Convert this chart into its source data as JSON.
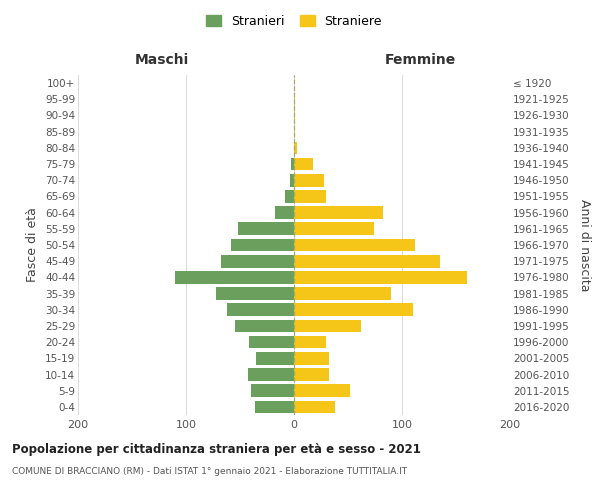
{
  "age_groups": [
    "0-4",
    "5-9",
    "10-14",
    "15-19",
    "20-24",
    "25-29",
    "30-34",
    "35-39",
    "40-44",
    "45-49",
    "50-54",
    "55-59",
    "60-64",
    "65-69",
    "70-74",
    "75-79",
    "80-84",
    "85-89",
    "90-94",
    "95-99",
    "100+"
  ],
  "birth_years": [
    "2016-2020",
    "2011-2015",
    "2006-2010",
    "2001-2005",
    "1996-2000",
    "1991-1995",
    "1986-1990",
    "1981-1985",
    "1976-1980",
    "1971-1975",
    "1966-1970",
    "1961-1965",
    "1956-1960",
    "1951-1955",
    "1946-1950",
    "1941-1945",
    "1936-1940",
    "1931-1935",
    "1926-1930",
    "1921-1925",
    "≤ 1920"
  ],
  "males": [
    36,
    40,
    43,
    35,
    42,
    55,
    62,
    72,
    110,
    68,
    58,
    52,
    18,
    8,
    4,
    3,
    0,
    0,
    0,
    0,
    0
  ],
  "females": [
    38,
    52,
    32,
    32,
    30,
    62,
    110,
    90,
    160,
    135,
    112,
    74,
    82,
    30,
    28,
    18,
    3,
    1,
    1,
    1,
    0
  ],
  "male_color": "#6a9f5e",
  "female_color": "#f5c518",
  "title": "Popolazione per cittadinanza straniera per età e sesso - 2021",
  "subtitle": "COMUNE DI BRACCIANO (RM) - Dati ISTAT 1° gennaio 2021 - Elaborazione TUTTITALIA.IT",
  "ylabel_left": "Fasce di età",
  "ylabel_right": "Anni di nascita",
  "xlabel_left": "Maschi",
  "xlabel_right": "Femmine",
  "xlim": 200,
  "legend_male": "Stranieri",
  "legend_female": "Straniere",
  "bg_color": "#ffffff",
  "grid_color": "#cccccc"
}
